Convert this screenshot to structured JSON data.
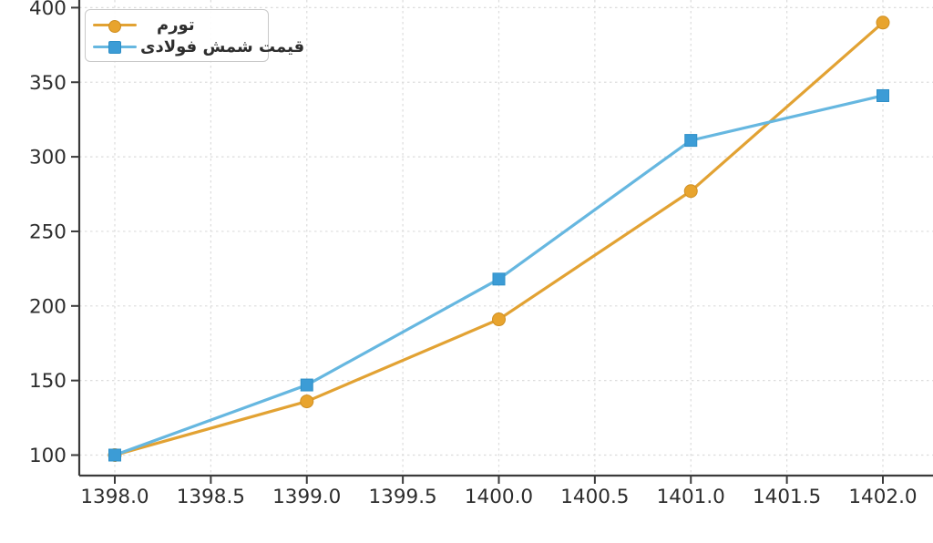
{
  "chart_data": {
    "type": "line",
    "x": [
      1398,
      1399,
      1400,
      1401,
      1402
    ],
    "series": [
      {
        "name": "تورم",
        "values": [
          100,
          136,
          191,
          277,
          390
        ],
        "line_color": "#e2a233",
        "marker": "circle",
        "marker_color": "#e8a42e",
        "marker_edge": "#cf8f22"
      },
      {
        "name": "قیمت شمش فولادی",
        "values": [
          100,
          147,
          218,
          311,
          341
        ],
        "line_color": "#66b7e0",
        "marker": "square",
        "marker_color": "#3c9cd6",
        "marker_edge": "#2e8fc7"
      }
    ],
    "xtick_labels": [
      "1398.0",
      "1398.5",
      "1399.0",
      "1399.5",
      "1400.0",
      "1400.5",
      "1401.0",
      "1401.5",
      "1402.0"
    ],
    "xticks": [
      1398.0,
      1398.5,
      1399.0,
      1399.5,
      1400.0,
      1400.5,
      1401.0,
      1401.5,
      1402.0
    ],
    "ytick_labels": [
      "100",
      "150",
      "200",
      "250",
      "300",
      "350",
      "400"
    ],
    "yticks": [
      100,
      150,
      200,
      250,
      300,
      350,
      400
    ],
    "title": "",
    "xlabel": "",
    "ylabel": "",
    "grid": true,
    "grid_style": "dashed",
    "legend_position": "upper-left",
    "xlim": [
      1397.81,
      1402.26
    ],
    "ylim": [
      86,
      405
    ]
  },
  "colors": {
    "grid": "#dcdcdc",
    "spine": "#3a3a3a",
    "tick_label": "#2d2d2d",
    "background": "#ffffff",
    "legend_border": "#c9c9c9"
  }
}
